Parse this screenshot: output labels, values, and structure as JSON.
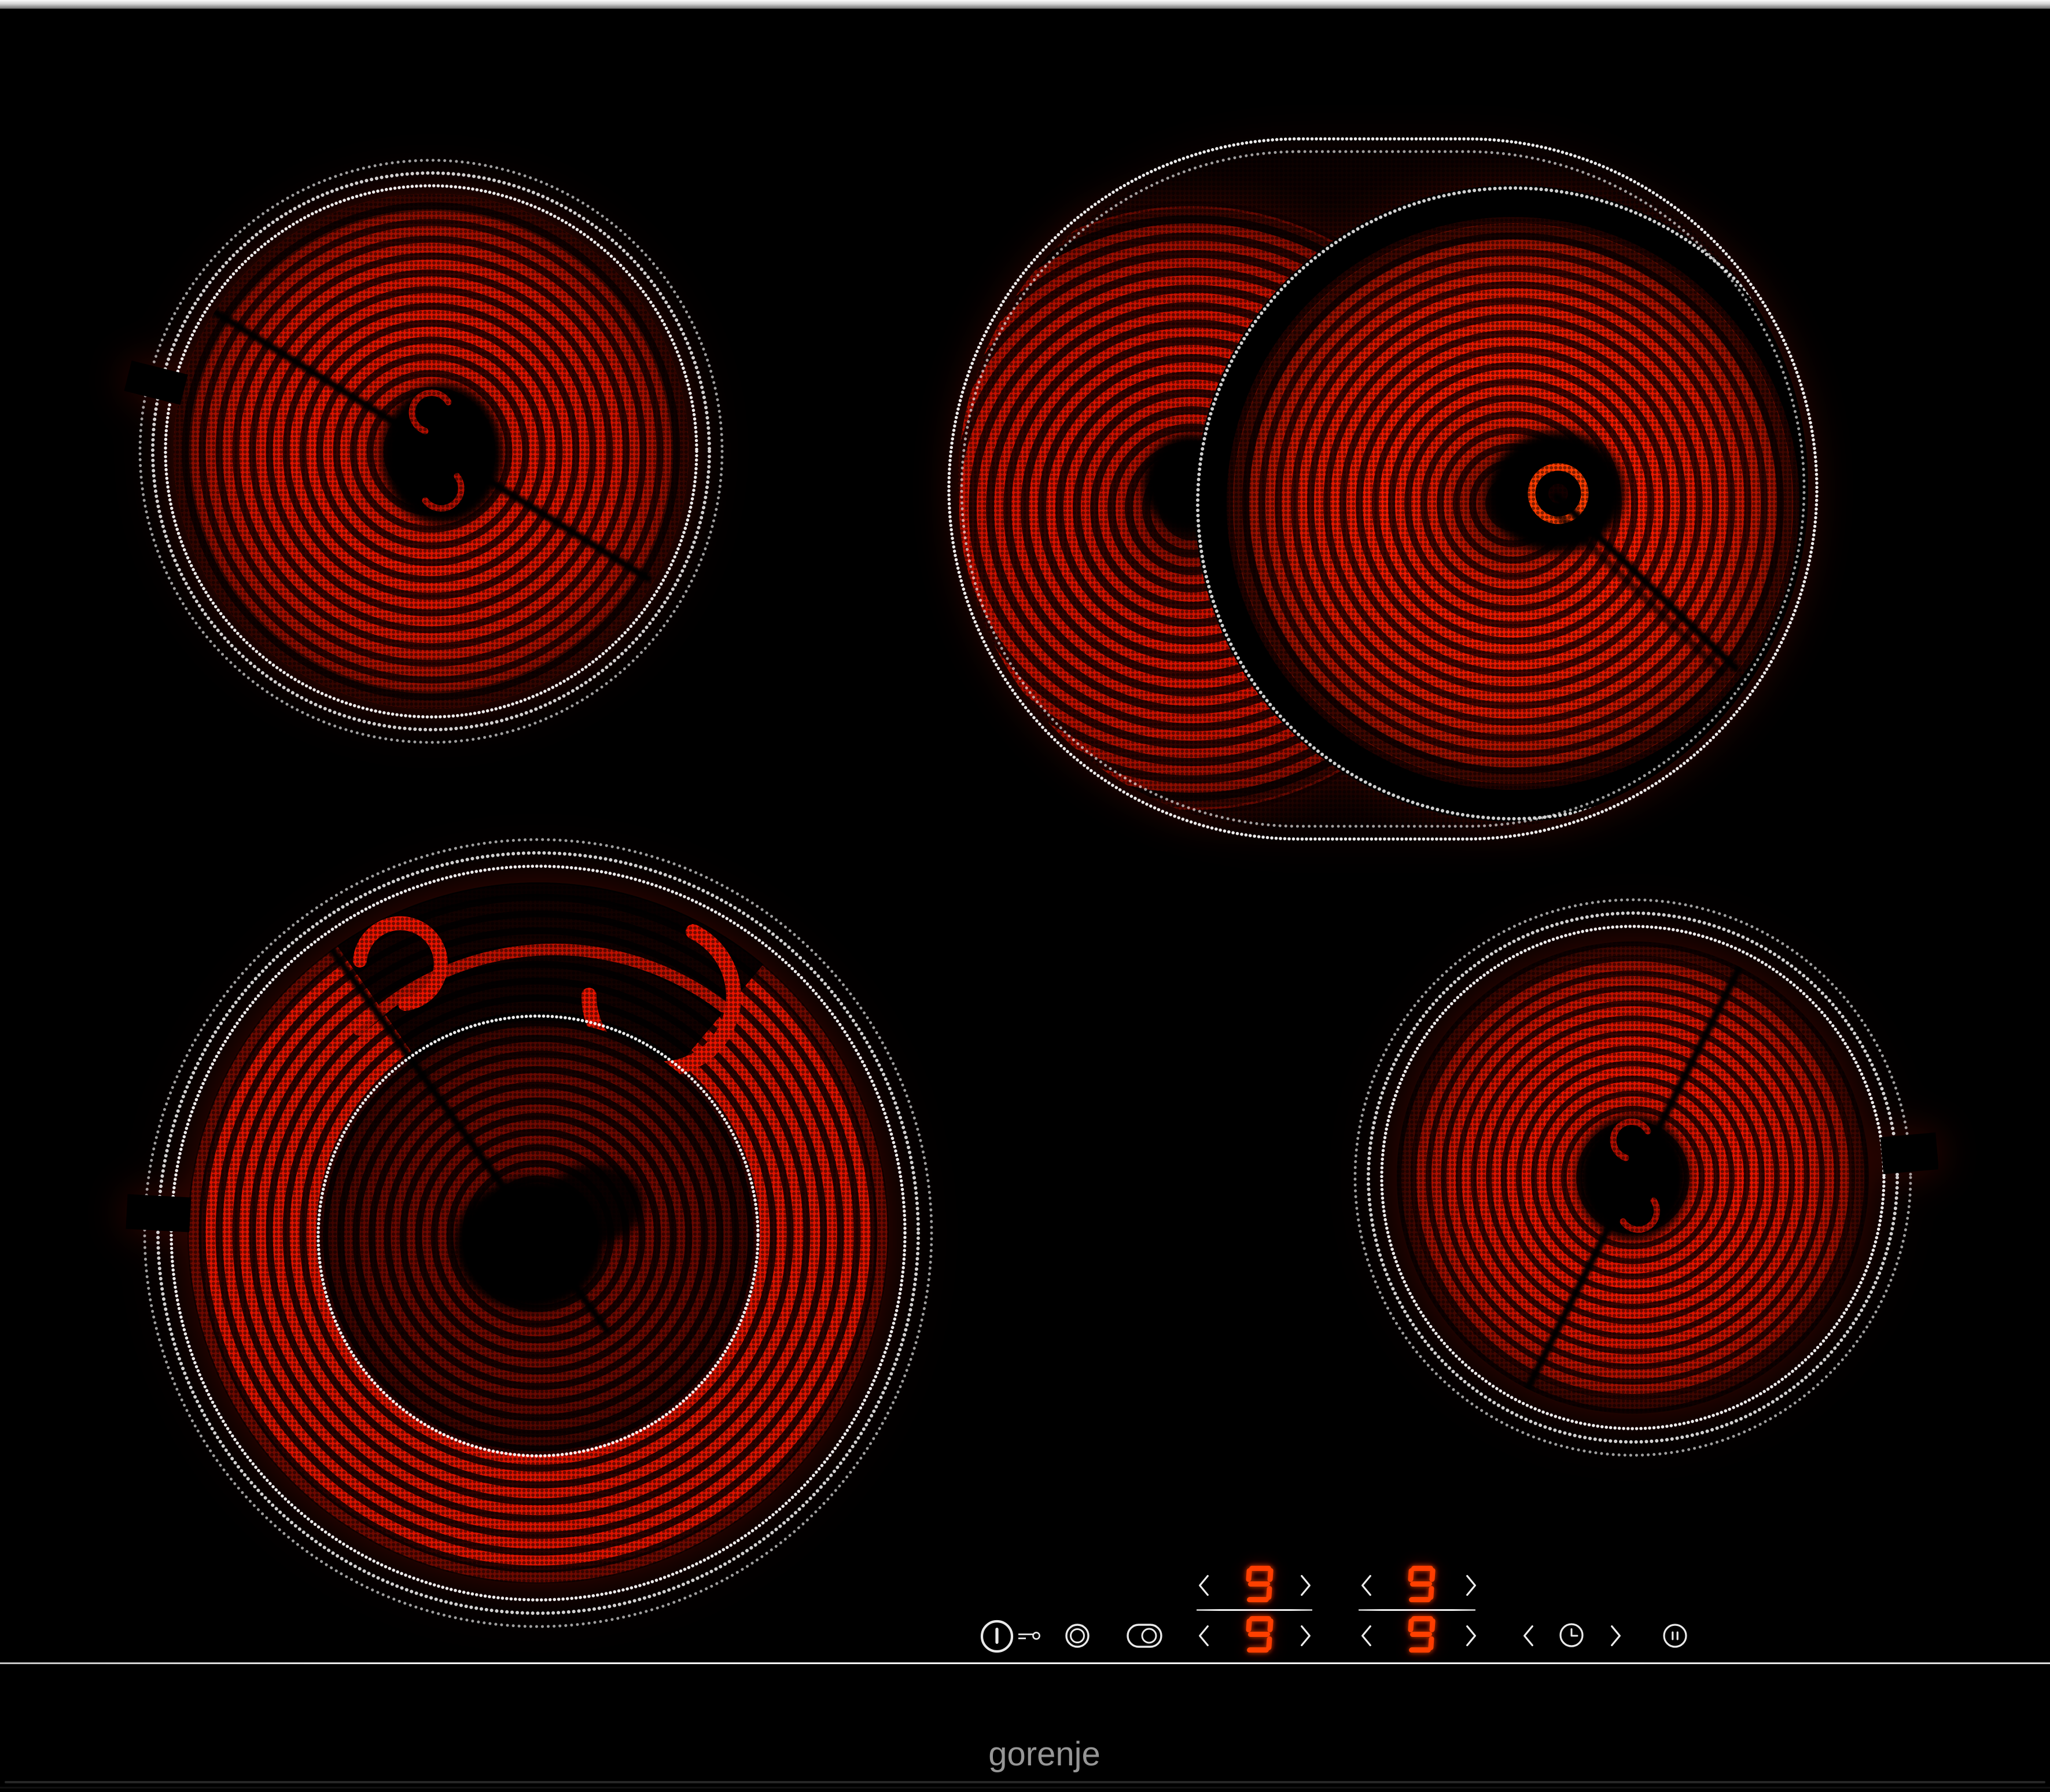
{
  "device": {
    "type": "glass ceramic cooktop",
    "state": "all zones on"
  },
  "branding": {
    "logo_text": "gorenje"
  },
  "colors": {
    "glass": "#000000",
    "coil_bright": "#ff1c00",
    "coil_mid": "#e01200",
    "coil_dim": "#a80d00",
    "digit": "#ff4000",
    "icon": "#ededed",
    "dotted_ring": "#ffffff",
    "edge_highlight": "#e9e9e9",
    "logo": "#969696"
  },
  "burners": [
    {
      "id": "rear-left",
      "position": "rear left",
      "type": "single radiant zone",
      "state": "on",
      "power_level": "9"
    },
    {
      "id": "rear-right",
      "position": "rear right",
      "type": "oval dual radiant zone",
      "state": "on",
      "power_level": "9"
    },
    {
      "id": "front-left",
      "position": "front left",
      "type": "dual-ring radiant zone",
      "state": "on",
      "power_level": "9"
    },
    {
      "id": "front-right",
      "position": "front right",
      "type": "single radiant zone",
      "state": "on",
      "power_level": "9"
    }
  ],
  "control_panel": {
    "power_button": {
      "icon": "power-icon"
    },
    "child_lock": {
      "icon": "key-lock-icon"
    },
    "dual_ring_toggle": {
      "icon": "dual-ring-zone-icon"
    },
    "oval_zone_toggle": {
      "icon": "oval-zone-icon"
    },
    "zone_displays": [
      {
        "zone": "left pair rear zone",
        "value": "9"
      },
      {
        "zone": "left pair front zone",
        "value": "9"
      },
      {
        "zone": "right pair rear zone",
        "value": "9"
      },
      {
        "zone": "right pair front zone",
        "value": "9"
      }
    ],
    "timer": {
      "icon": "clock-icon"
    },
    "pause_button": {
      "icon": "pause-icon"
    },
    "icons": {
      "decrease": "chevron-left-icon",
      "increase": "chevron-right-icon"
    }
  }
}
